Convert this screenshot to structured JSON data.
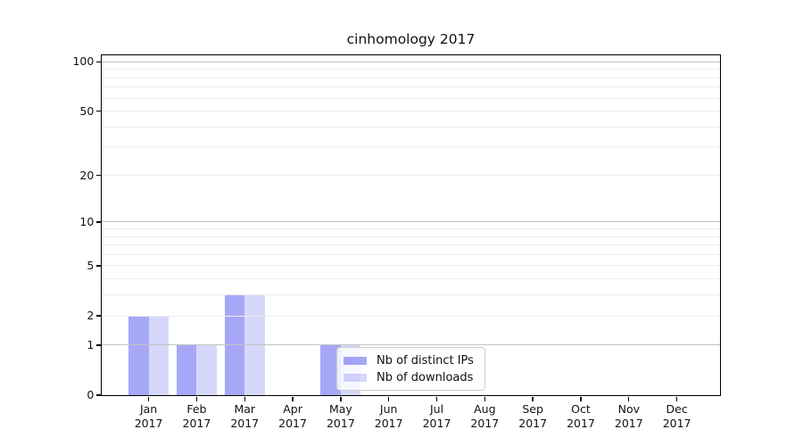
{
  "title": "cinhomology 2017",
  "chart_data": {
    "type": "bar",
    "title": "cinhomology 2017",
    "categories": [
      "Jan",
      "Feb",
      "Mar",
      "Apr",
      "May",
      "Jun",
      "Jul",
      "Aug",
      "Sep",
      "Oct",
      "Nov",
      "Dec"
    ],
    "category_year": "2017",
    "x_tick_labels": [
      "Jan 2017",
      "Feb 2017",
      "Mar 2017",
      "Apr 2017",
      "May 2017",
      "Jun 2017",
      "Jul 2017",
      "Aug 2017",
      "Sep 2017",
      "Oct 2017",
      "Nov 2017",
      "Dec 2017"
    ],
    "series": [
      {
        "name": "Nb of distinct IPs",
        "values": [
          2,
          1,
          3,
          0,
          1,
          0,
          0,
          0,
          0,
          0,
          0,
          0
        ],
        "color": "#a7a7f8",
        "fill": "rgba(0,0,235,0.345)"
      },
      {
        "name": "Nb of downloads",
        "values": [
          2,
          1,
          3,
          0,
          1,
          0,
          0,
          0,
          0,
          0,
          0,
          0
        ],
        "color": "#d9d9fa",
        "fill": "rgba(0,0,235,0.155)"
      }
    ],
    "yscale": "log1p",
    "ylim": [
      0,
      110
    ],
    "y_ticks": [
      0,
      1,
      2,
      5,
      10,
      20,
      50,
      100
    ],
    "y_major_gridlines": [
      1,
      10,
      100
    ],
    "y_minor_gridlines": [
      2,
      3,
      4,
      5,
      6,
      7,
      8,
      9,
      20,
      30,
      40,
      50,
      60,
      70,
      80,
      90
    ],
    "grid": "horizontal",
    "legend_position": "lower center-right inside plot",
    "colors": {
      "bar_dark": "#a7a7f8",
      "bar_light": "#d9d9fa",
      "grid_minor": "#ededed",
      "grid_major": "#c4c4c4",
      "spine": "#000000",
      "legend_border": "#cccccc"
    }
  },
  "legend": {
    "items": [
      {
        "label": "Nb of distinct IPs"
      },
      {
        "label": "Nb of downloads"
      }
    ]
  }
}
